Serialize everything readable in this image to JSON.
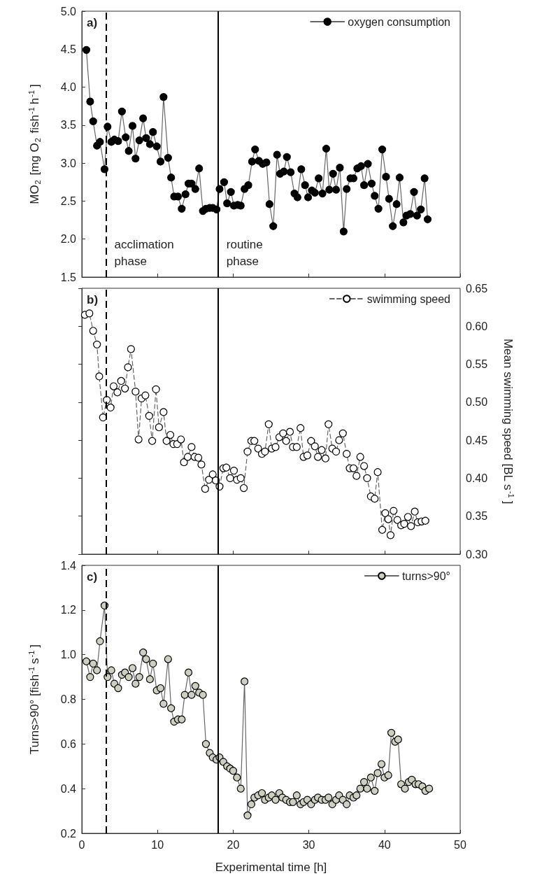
{
  "chart_data": [
    {
      "type": "line",
      "ylabel": "MO$_{2}$ [mg O$_{2}$ fish$^{-1}$h$^{-1}$]",
      "xlim": [
        0,
        50
      ],
      "xticks": [
        0,
        10,
        20,
        30,
        40,
        50
      ],
      "ylim": [
        1.5,
        5
      ],
      "yticks": [
        1.5,
        {
          "value": 2,
          "label": "2.0"
        },
        2.5,
        {
          "value": 3,
          "label": "3.0"
        },
        3.5,
        {
          "value": 4,
          "label": "4.0"
        },
        4.5,
        {
          "value": 5,
          "label": "5.0"
        }
      ],
      "tick_labels": "y",
      "grid": false,
      "legend": "top right",
      "marker": "circle",
      "line_style": "solid",
      "x": [
        0.6,
        1.1,
        1.5,
        2.0,
        2.4,
        3.0,
        3.4,
        3.9,
        4.3,
        4.8,
        5.3,
        5.8,
        6.2,
        6.7,
        7.1,
        7.6,
        8.1,
        8.5,
        9.0,
        9.4,
        9.9,
        10.4,
        10.8,
        11.4,
        11.8,
        12.2,
        12.7,
        13.2,
        13.7,
        14.1,
        14.5,
        15.0,
        15.5,
        16.0,
        16.4,
        16.9,
        17.3,
        17.8,
        18.2,
        18.8,
        19.2,
        19.7,
        20.1,
        20.6,
        21.0,
        21.5,
        22.0,
        22.5,
        22.9,
        23.4,
        23.9,
        24.4,
        24.8,
        25.3,
        25.8,
        26.2,
        26.7,
        27.1,
        27.6,
        28.1,
        28.5,
        29.0,
        29.5,
        29.9,
        30.4,
        30.8,
        31.3,
        31.8,
        32.3,
        32.7,
        33.2,
        33.6,
        34.1,
        34.6,
        35.0,
        35.5,
        35.9,
        36.4,
        36.9,
        37.3,
        37.8,
        38.3,
        38.7,
        39.2,
        39.7,
        40.2,
        40.6,
        41.1,
        41.6,
        42.0,
        42.5,
        42.9,
        43.4,
        43.9,
        44.3,
        44.8,
        45.3,
        45.7
      ],
      "series": [
        {
          "name": "oxygen consumption",
          "color": "#000000",
          "values": [
            4.49,
            3.81,
            3.55,
            3.23,
            3.28,
            2.92,
            3.48,
            3.28,
            3.31,
            3.29,
            3.68,
            3.34,
            3.16,
            3.49,
            3.06,
            3.3,
            3.59,
            3.33,
            3.25,
            3.41,
            3.22,
            3.02,
            3.87,
            3.07,
            2.81,
            2.56,
            2.56,
            2.4,
            2.59,
            2.73,
            2.73,
            2.66,
            2.93,
            2.37,
            2.4,
            2.41,
            2.41,
            2.39,
            2.66,
            2.75,
            2.47,
            2.62,
            2.44,
            2.45,
            2.44,
            2.66,
            2.71,
            3.02,
            3.18,
            3.03,
            2.99,
            3.01,
            2.46,
            2.17,
            3.11,
            2.86,
            2.89,
            3.08,
            2.88,
            2.6,
            2.55,
            2.92,
            2.71,
            2.55,
            2.64,
            2.61,
            2.8,
            2.6,
            3.19,
            2.65,
            2.86,
            2.65,
            2.94,
            2.1,
            2.66,
            2.8,
            2.8,
            2.93,
            2.96,
            2.71,
            2.99,
            2.73,
            2.57,
            2.4,
            3.18,
            2.82,
            2.53,
            2.17,
            2.46,
            2.81,
            2.22,
            2.31,
            2.33,
            2.62,
            2.31,
            2.39,
            2.8,
            2.26
          ]
        }
      ],
      "ref_lines": [
        {
          "axis": "x",
          "value": 3.2,
          "color": "#000000",
          "line_style": "dashed"
        },
        {
          "axis": "x",
          "value": 18,
          "color": "#000000",
          "line_style": "solid"
        }
      ],
      "annotations": [
        "a)",
        "acclimation phase",
        "routine phase"
      ]
    },
    {
      "type": "line",
      "y2label": "Mean swimming speed [BL s$^{-1}$]",
      "xlim": [
        0,
        50
      ],
      "xticks": [
        0,
        10,
        20,
        30,
        40,
        50
      ],
      "y2lim": [
        0.3,
        0.65
      ],
      "y2ticks": [
        {
          "value": 0.3,
          "label": "0.30"
        },
        0.35,
        {
          "value": 0.4,
          "label": "0.40"
        },
        0.45,
        {
          "value": 0.5,
          "label": "0.50"
        },
        0.55,
        {
          "value": 0.6,
          "label": "0.60"
        },
        0.65
      ],
      "tick_labels": "y",
      "grid": false,
      "legend": "top right",
      "marker": "circle",
      "line_style": "dashed",
      "x": [
        0.4,
        1.0,
        1.5,
        2.0,
        2.3,
        2.8,
        3.3,
        3.8,
        4.2,
        4.7,
        5.2,
        5.7,
        6.1,
        6.5,
        7.1,
        7.5,
        7.9,
        8.4,
        8.9,
        9.3,
        9.8,
        10.2,
        10.8,
        11.2,
        11.7,
        12.1,
        12.6,
        13.1,
        13.5,
        14.0,
        14.5,
        14.9,
        15.4,
        15.8,
        16.3,
        16.8,
        17.3,
        17.7,
        18.2,
        18.7,
        19.1,
        19.6,
        20.1,
        20.5,
        21.0,
        21.4,
        21.9,
        22.4,
        22.8,
        23.3,
        23.8,
        24.2,
        24.7,
        25.1,
        25.6,
        26.1,
        26.6,
        27.0,
        27.5,
        27.9,
        28.4,
        28.9,
        29.3,
        29.8,
        30.3,
        30.8,
        31.2,
        31.7,
        32.2,
        32.6,
        33.1,
        33.6,
        34.0,
        34.5,
        35.0,
        35.4,
        35.9,
        36.3,
        36.8,
        37.3,
        37.7,
        38.2,
        38.7,
        39.1,
        39.7,
        40.1,
        40.5,
        40.8,
        41.2,
        41.7,
        42.2,
        42.6,
        43.1,
        43.5,
        44.0,
        44.4,
        44.9,
        45.4
      ],
      "series": [
        {
          "name": "swimming speed",
          "color": "#ffffff",
          "axis": "y2",
          "values": [
            0.615,
            0.617,
            0.594,
            0.576,
            0.534,
            0.48,
            0.503,
            0.493,
            0.521,
            0.513,
            0.528,
            0.518,
            0.546,
            0.57,
            0.514,
            0.451,
            0.505,
            0.509,
            0.482,
            0.449,
            0.517,
            0.467,
            0.487,
            0.449,
            0.457,
            0.445,
            0.445,
            0.451,
            0.421,
            0.428,
            0.441,
            0.428,
            0.427,
            0.418,
            0.386,
            0.398,
            0.405,
            0.397,
            0.389,
            0.413,
            0.414,
            0.4,
            0.41,
            0.398,
            0.4,
            0.387,
            0.435,
            0.449,
            0.449,
            0.439,
            0.432,
            0.435,
            0.471,
            0.439,
            0.441,
            0.454,
            0.459,
            0.449,
            0.461,
            0.441,
            0.441,
            0.466,
            0.428,
            0.43,
            0.449,
            0.442,
            0.428,
            0.437,
            0.426,
            0.471,
            0.439,
            0.435,
            0.45,
            0.459,
            0.432,
            0.413,
            0.413,
            0.403,
            0.428,
            0.416,
            0.4,
            0.376,
            0.373,
            0.408,
            0.332,
            0.354,
            0.346,
            0.325,
            0.357,
            0.345,
            0.338,
            0.34,
            0.349,
            0.337,
            0.356,
            0.342,
            0.343,
            0.344
          ]
        }
      ],
      "ref_lines": [
        {
          "axis": "x",
          "value": 3.2,
          "color": "#000000",
          "line_style": "dashed"
        },
        {
          "axis": "x",
          "value": 18,
          "color": "#000000",
          "line_style": "solid"
        }
      ],
      "annotations": [
        "b)"
      ]
    },
    {
      "type": "line",
      "xlabel": "Experimental time [h]",
      "ylabel": "Turns>90° [fish$^{-1}$s$^{-1}$]",
      "xlim": [
        0,
        50
      ],
      "xticks": [
        0,
        10,
        20,
        30,
        40,
        50
      ],
      "ylim": [
        0.2,
        1.4
      ],
      "yticks": [
        0.2,
        0.4,
        0.6,
        0.8,
        {
          "value": 1,
          "label": "1.0"
        },
        1.2,
        1.4
      ],
      "grid": false,
      "legend": "top right",
      "marker": "circle",
      "line_style": "solid",
      "x": [
        0.6,
        1.1,
        1.5,
        2.0,
        2.4,
        3.0,
        3.4,
        3.9,
        4.3,
        4.8,
        5.3,
        5.7,
        6.2,
        6.7,
        7.1,
        7.6,
        8.1,
        8.5,
        9.0,
        9.4,
        9.9,
        10.4,
        10.8,
        11.4,
        11.8,
        12.2,
        12.7,
        13.2,
        13.6,
        14.1,
        14.5,
        15.0,
        15.5,
        16.0,
        16.4,
        16.9,
        17.3,
        17.8,
        18.2,
        18.7,
        19.2,
        19.6,
        20.0,
        20.5,
        21.0,
        21.5,
        21.9,
        22.4,
        22.8,
        23.3,
        23.8,
        24.2,
        24.7,
        25.1,
        25.6,
        26.1,
        26.5,
        27.0,
        27.5,
        27.9,
        28.4,
        28.9,
        29.3,
        29.8,
        30.3,
        30.8,
        31.2,
        31.7,
        32.2,
        32.6,
        33.1,
        33.6,
        34.0,
        34.5,
        35.0,
        35.4,
        35.9,
        36.3,
        36.8,
        37.3,
        37.7,
        38.2,
        38.7,
        39.1,
        39.6,
        40.0,
        40.5,
        40.9,
        41.4,
        41.8,
        42.2,
        42.7,
        43.2,
        43.6,
        44.1,
        44.5,
        45.0,
        45.4,
        45.9
      ],
      "series": [
        {
          "name": "turns>90°",
          "color": "#cdd0c0",
          "values": [
            0.97,
            0.9,
            0.96,
            0.93,
            1.06,
            1.22,
            0.9,
            0.93,
            0.87,
            0.85,
            0.91,
            0.92,
            0.9,
            0.94,
            0.87,
            0.9,
            1.01,
            0.98,
            0.89,
            0.96,
            0.84,
            0.85,
            0.78,
            0.98,
            0.76,
            0.7,
            0.71,
            0.71,
            0.82,
            0.92,
            0.82,
            0.86,
            0.83,
            0.82,
            0.6,
            0.56,
            0.54,
            0.53,
            0.54,
            0.52,
            0.5,
            0.49,
            0.48,
            0.45,
            0.4,
            0.88,
            0.28,
            0.33,
            0.36,
            0.37,
            0.38,
            0.35,
            0.36,
            0.37,
            0.35,
            0.38,
            0.36,
            0.35,
            0.34,
            0.34,
            0.37,
            0.33,
            0.34,
            0.35,
            0.33,
            0.35,
            0.36,
            0.35,
            0.35,
            0.36,
            0.33,
            0.35,
            0.37,
            0.35,
            0.33,
            0.37,
            0.36,
            0.37,
            0.4,
            0.43,
            0.4,
            0.45,
            0.39,
            0.47,
            0.51,
            0.45,
            0.46,
            0.65,
            0.61,
            0.62,
            0.42,
            0.4,
            0.43,
            0.44,
            0.42,
            0.42,
            0.41,
            0.39,
            0.4
          ]
        }
      ],
      "ref_lines": [
        {
          "axis": "x",
          "value": 3.2,
          "color": "#000000",
          "line_style": "dashed"
        },
        {
          "axis": "x",
          "value": 18,
          "color": "#000000",
          "line_style": "solid"
        }
      ],
      "annotations": [
        "c)"
      ]
    }
  ]
}
